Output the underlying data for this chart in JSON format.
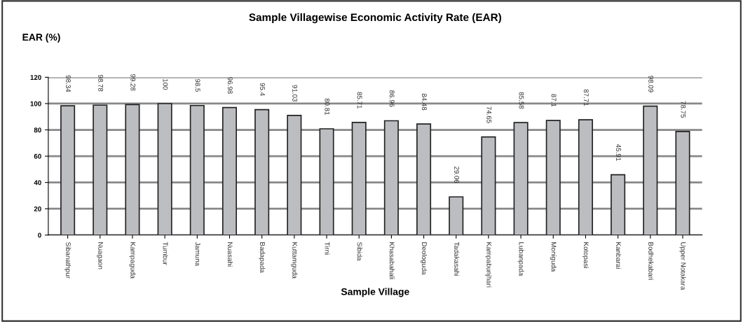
{
  "chart_data": {
    "type": "bar",
    "title": "Sample Villagewise Economic Activity Rate (EAR)",
    "xlabel": "Sample Village",
    "ylabel": "EAR (%)",
    "categories": [
      "Sibanathpur",
      "Nuagaon",
      "Kampaguda",
      "Tumbur",
      "Jamuna",
      "Nuasahi",
      "Badapada",
      "Kuttamguda",
      "Tirni",
      "Sibida",
      "Khasabahali",
      "Deologuda",
      "Tadakasahi",
      "Kampabunjhari",
      "Lubanpada",
      "Moniguda",
      "Kotopasi",
      "Kanbarai",
      "Bodhekabari",
      "Upper Notakara"
    ],
    "values": [
      98.34,
      98.78,
      99.28,
      100,
      98.5,
      96.98,
      95.4,
      91.03,
      80.81,
      85.71,
      86.96,
      84.48,
      29.06,
      74.65,
      85.58,
      87.1,
      87.71,
      45.91,
      98.09,
      78.75
    ],
    "color": "#bcbdc1",
    "ylim": [
      0,
      120
    ],
    "yticks": [
      0,
      20,
      40,
      60,
      80,
      100,
      120
    ],
    "grid": "y",
    "data_labels": true
  }
}
